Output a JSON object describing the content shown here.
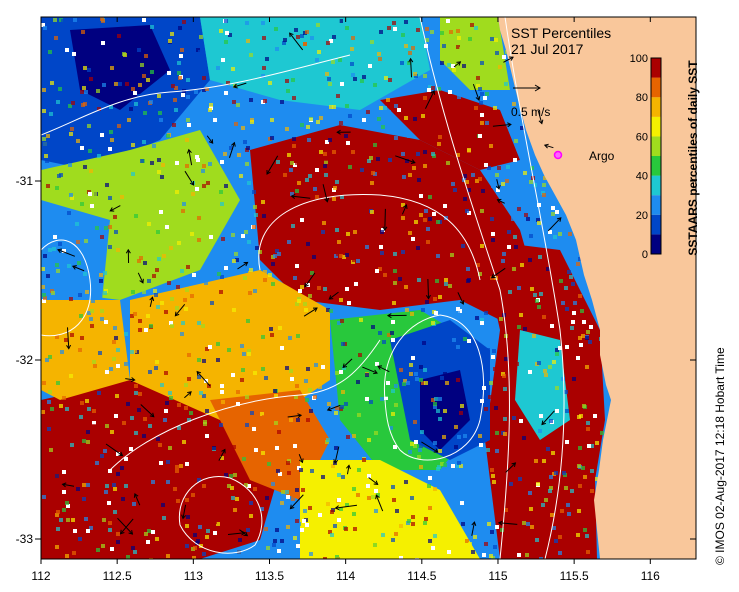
{
  "title": {
    "line1": "SST Percentiles",
    "line2": "21 Jul 2017"
  },
  "vector_scale": {
    "label": "0.5 m/s"
  },
  "argo": {
    "label": "Argo",
    "color": "#ff00ff"
  },
  "colorbar": {
    "label": "SSTAARS percentiles of daily SST",
    "ticks": [
      "0",
      "20",
      "40",
      "60",
      "80",
      "100"
    ],
    "colors": [
      "#000080",
      "#0046c8",
      "#1e8cf0",
      "#1ec8d2",
      "#28c83c",
      "#a0dc1e",
      "#f5f000",
      "#f5b400",
      "#e66400",
      "#aa0000"
    ]
  },
  "axes": {
    "x_ticks": [
      "112",
      "112.5",
      "113",
      "113.5",
      "114",
      "114.5",
      "115",
      "115.5",
      "116"
    ],
    "y_ticks": [
      "-31",
      "-32",
      "-33"
    ]
  },
  "credit": "© IMOS 02-Aug-2017 12:18 Hobart Time",
  "land_color": "#f9c79b"
}
